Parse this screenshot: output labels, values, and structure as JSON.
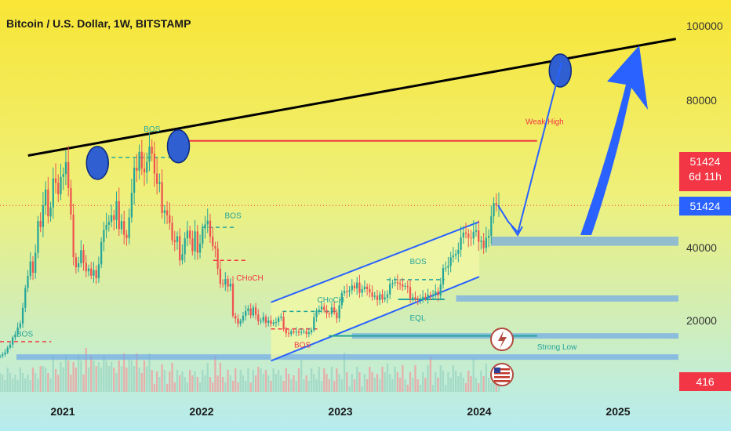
{
  "header": {
    "title": "Bitcoin / U.S. Dollar, 1W, BITSTAMP"
  },
  "price_tags": {
    "last_price": "51424",
    "countdown": "6d 11h",
    "close_price": "51424",
    "volume": "416"
  },
  "colors": {
    "up": "#26a69a",
    "down": "#ef5350",
    "accent_blue": "#2962ff",
    "marker_blue": "#2f5fd0",
    "red_line": "#f23645",
    "tag_red": "#f23645",
    "tag_blue": "#2962ff",
    "zone_blue": "#6fa8e8",
    "bg_top": "#f8e535",
    "bg_bottom": "#b6ecf0"
  },
  "chart_data": {
    "type": "candlestick",
    "symbol": "Bitcoin / U.S. Dollar",
    "interval": "1W",
    "exchange": "BITSTAMP",
    "x_ticks": [
      "2021",
      "2022",
      "2023",
      "2024",
      "2025"
    ],
    "y_ticks": [
      20000,
      40000,
      80000,
      100000
    ],
    "y_tick_labels": [
      "20000",
      "40000",
      "80000",
      "100000"
    ],
    "last_price": 51424,
    "countdown": "6d 11h",
    "volume_label": "416",
    "weekly_closes": [
      10800,
      11200,
      11700,
      12900,
      13700,
      15600,
      16400,
      18200,
      19200,
      23500,
      28900,
      32200,
      36200,
      33100,
      38600,
      47200,
      45600,
      51500,
      55800,
      48500,
      50900,
      58800,
      57600,
      54500,
      59200,
      60000,
      63200,
      56200,
      49000,
      37400,
      34600,
      35700,
      39300,
      35800,
      33500,
      34300,
      32300,
      33800,
      31600,
      35400,
      41500,
      44800,
      46200,
      47000,
      48800,
      47500,
      52600,
      45000,
      47200,
      43500,
      42600,
      48200,
      54900,
      61700,
      60900,
      66000,
      61500,
      60400,
      63300,
      67400,
      65500,
      60100,
      57300,
      57800,
      49400,
      50100,
      48800,
      46700,
      42000,
      41500,
      43100,
      36500,
      38200,
      42500,
      44600,
      42500,
      39000,
      44400,
      38600,
      41100,
      45200,
      46300,
      47300,
      43000,
      40400,
      39700,
      34200,
      30100,
      29900,
      31400,
      29300,
      30100,
      21300,
      20500,
      19200,
      19900,
      21300,
      22600,
      23300,
      21400,
      23600,
      21600,
      19800,
      19900,
      21000,
      19400,
      20000,
      19100,
      19500,
      19600,
      20700,
      21000,
      17700,
      16700,
      16500,
      17200,
      16900,
      17100,
      16800,
      17000,
      17200,
      16500,
      16900,
      17500,
      20900,
      22700,
      23000,
      23800,
      22900,
      21900,
      21800,
      23600,
      22200,
      20600,
      24200,
      27500,
      28100,
      27900,
      28300,
      29600,
      28800,
      30400,
      27600,
      28600,
      29300,
      28600,
      27700,
      26500,
      26800,
      25600,
      27200,
      25800,
      26300,
      27200,
      30000,
      30300,
      30500,
      30200,
      29900,
      29300,
      29500,
      29200,
      26100,
      26400,
      26000,
      25800,
      25900,
      26500,
      26200,
      27100,
      26900,
      27000,
      28000,
      26900,
      29900,
      34400,
      34500,
      35000,
      37400,
      37900,
      38300,
      39400,
      42800,
      44100,
      43800,
      42700,
      42500,
      44300,
      44700,
      41600,
      41900,
      39900,
      42700,
      43200,
      48500,
      52100,
      51400,
      51400
    ],
    "series": [
      {
        "name": "Volume",
        "type": "volume"
      }
    ],
    "drawings": [
      {
        "type": "trendline",
        "color": "#000000",
        "from": [
          "2020-10",
          65000
        ],
        "to": [
          "2025-06",
          96500
        ]
      },
      {
        "type": "horizontal",
        "label": "Weak High",
        "color": "#f23645",
        "value": 69000,
        "from": "2021-11",
        "to": "2024-06"
      },
      {
        "type": "zone",
        "value_low": 40500,
        "value_high": 43000,
        "from": "2024-02",
        "to": "2025-09"
      },
      {
        "type": "zone",
        "value_low": 25200,
        "value_high": 26900,
        "from": "2023-11",
        "to": "2025-09"
      },
      {
        "type": "zone",
        "value_low": 15700,
        "value_high": 16700,
        "from": "2023-02",
        "to": "2025-09"
      },
      {
        "type": "zone",
        "value_low": 10000,
        "value_high": 11200,
        "from": "2020-09",
        "to": "2025-09"
      },
      {
        "type": "channel",
        "label": "",
        "upper_from": [
          "2022-07",
          25000
        ],
        "upper_to": [
          "2024-01",
          47000
        ],
        "lower_from": [
          "2022-07",
          9500
        ],
        "lower_to": [
          "2024-01",
          32000
        ]
      },
      {
        "type": "horizontal",
        "label": "Strong Low",
        "color": "#26a69a",
        "value": 16000,
        "from": "2022-12",
        "to": "2024-06"
      },
      {
        "type": "horizontal",
        "label": "EQL",
        "color": "#26a69a",
        "value": 25800,
        "from": "2023-06",
        "to": "2023-10"
      },
      {
        "type": "marker",
        "at": [
          "2021-04",
          63000
        ]
      },
      {
        "type": "marker",
        "at": [
          "2021-11",
          67500
        ]
      },
      {
        "type": "marker",
        "at": [
          "2024-08",
          88000
        ]
      }
    ],
    "annotations": [
      {
        "text": "BOS",
        "at": [
          "2021-08",
          71500
        ],
        "color": "#26a69a"
      },
      {
        "text": "BOS",
        "at": [
          "2022-03",
          48000
        ],
        "color": "#26a69a"
      },
      {
        "text": "BOS",
        "at": [
          "2020-09",
          15800
        ],
        "color": "#26a69a"
      },
      {
        "text": "CHoCH",
        "at": [
          "2022-04",
          31000
        ],
        "color": "#f23645"
      },
      {
        "text": "CHoCH",
        "at": [
          "2022-11",
          25000
        ],
        "color": "#26a69a"
      },
      {
        "text": "BOS",
        "at": [
          "2022-09",
          13000
        ],
        "color": "#f23645"
      },
      {
        "text": "BOS",
        "at": [
          "2023-07",
          35500
        ],
        "color": "#26a69a"
      },
      {
        "text": "EQL",
        "at": [
          "2023-07",
          20000
        ],
        "color": "#26a69a"
      },
      {
        "text": "Weak High",
        "at": [
          "2024-05",
          73500
        ],
        "color": "#f23645"
      },
      {
        "text": "Strong Low",
        "at": [
          "2024-06",
          12500
        ],
        "color": "#26a69a"
      }
    ],
    "grid": false,
    "legend": "none"
  }
}
